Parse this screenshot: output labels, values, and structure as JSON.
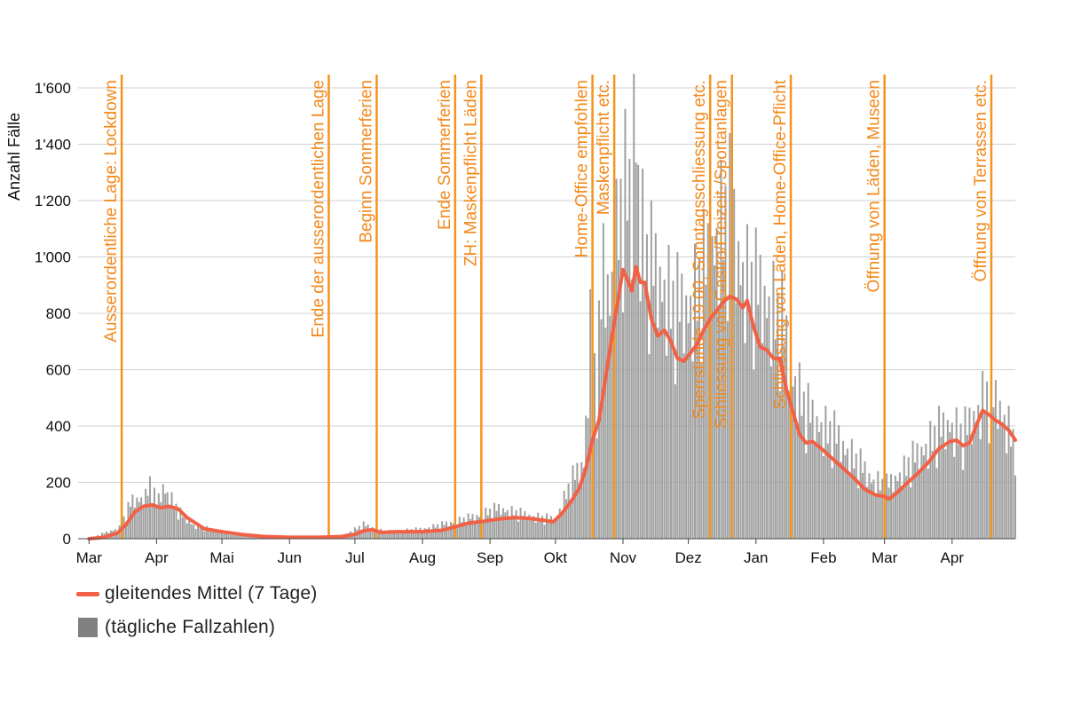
{
  "colors": {
    "line": "#f26045",
    "bars": "#a0a0a0",
    "event": "#f5931e",
    "event_text": "#f28a1c",
    "grid": "#d0d0d0",
    "legend_box": "#808080"
  },
  "chart_data": {
    "type": "bar",
    "title": "",
    "ylabel": "Anzahl Fälle",
    "ylim": [
      0,
      1600
    ],
    "yticks": [
      0,
      200,
      400,
      600,
      800,
      1000,
      1200,
      1400,
      1600
    ],
    "ytick_labels": [
      "0",
      "200",
      "400",
      "600",
      "800",
      "1'000",
      "1'200",
      "1'400",
      "1'600"
    ],
    "xticks": [
      {
        "date": "2020-03-01",
        "label": "Mar"
      },
      {
        "date": "2020-04-01",
        "label": "Apr"
      },
      {
        "date": "2020-05-01",
        "label": "Mai"
      },
      {
        "date": "2020-06-01",
        "label": "Jun"
      },
      {
        "date": "2020-07-01",
        "label": "Jul"
      },
      {
        "date": "2020-08-01",
        "label": "Aug"
      },
      {
        "date": "2020-09-01",
        "label": "Sep"
      },
      {
        "date": "2020-10-01",
        "label": "Okt"
      },
      {
        "date": "2020-11-01",
        "label": "Nov"
      },
      {
        "date": "2020-12-01",
        "label": "Dez"
      },
      {
        "date": "2021-01-01",
        "label": "Jan"
      },
      {
        "date": "2021-02-01",
        "label": "Feb"
      },
      {
        "date": "2021-03-01",
        "label": "Mar"
      },
      {
        "date": "2021-04-01",
        "label": "Apr"
      }
    ],
    "x_range": [
      "2020-02-25",
      "2021-04-30"
    ],
    "grid": true,
    "series": [
      {
        "name": "gleitendes Mittel (7 Tage)",
        "kind": "line",
        "points": [
          [
            "2020-03-01",
            0
          ],
          [
            "2020-03-08",
            5
          ],
          [
            "2020-03-14",
            20
          ],
          [
            "2020-03-18",
            50
          ],
          [
            "2020-03-22",
            95
          ],
          [
            "2020-03-26",
            115
          ],
          [
            "2020-03-30",
            120
          ],
          [
            "2020-04-03",
            110
          ],
          [
            "2020-04-07",
            115
          ],
          [
            "2020-04-11",
            105
          ],
          [
            "2020-04-15",
            75
          ],
          [
            "2020-04-19",
            55
          ],
          [
            "2020-04-23",
            35
          ],
          [
            "2020-05-01",
            25
          ],
          [
            "2020-05-10",
            15
          ],
          [
            "2020-05-20",
            8
          ],
          [
            "2020-06-01",
            5
          ],
          [
            "2020-06-15",
            5
          ],
          [
            "2020-06-25",
            8
          ],
          [
            "2020-07-01",
            15
          ],
          [
            "2020-07-05",
            28
          ],
          [
            "2020-07-09",
            32
          ],
          [
            "2020-07-13",
            22
          ],
          [
            "2020-07-20",
            25
          ],
          [
            "2020-08-01",
            25
          ],
          [
            "2020-08-10",
            30
          ],
          [
            "2020-08-15",
            40
          ],
          [
            "2020-08-22",
            55
          ],
          [
            "2020-08-29",
            62
          ],
          [
            "2020-09-05",
            70
          ],
          [
            "2020-09-12",
            75
          ],
          [
            "2020-09-19",
            72
          ],
          [
            "2020-09-26",
            65
          ],
          [
            "2020-09-30",
            60
          ],
          [
            "2020-10-04",
            90
          ],
          [
            "2020-10-08",
            130
          ],
          [
            "2020-10-12",
            180
          ],
          [
            "2020-10-15",
            250
          ],
          [
            "2020-10-18",
            350
          ],
          [
            "2020-10-21",
            420
          ],
          [
            "2020-10-24",
            570
          ],
          [
            "2020-10-27",
            720
          ],
          [
            "2020-10-30",
            860
          ],
          [
            "2020-11-01",
            955
          ],
          [
            "2020-11-03",
            920
          ],
          [
            "2020-11-05",
            880
          ],
          [
            "2020-11-07",
            965
          ],
          [
            "2020-11-09",
            910
          ],
          [
            "2020-11-11",
            910
          ],
          [
            "2020-11-14",
            780
          ],
          [
            "2020-11-17",
            720
          ],
          [
            "2020-11-20",
            740
          ],
          [
            "2020-11-23",
            700
          ],
          [
            "2020-11-26",
            640
          ],
          [
            "2020-11-29",
            630
          ],
          [
            "2020-12-02",
            660
          ],
          [
            "2020-12-05",
            690
          ],
          [
            "2020-12-08",
            740
          ],
          [
            "2020-12-11",
            780
          ],
          [
            "2020-12-14",
            810
          ],
          [
            "2020-12-17",
            840
          ],
          [
            "2020-12-20",
            860
          ],
          [
            "2020-12-23",
            850
          ],
          [
            "2020-12-26",
            820
          ],
          [
            "2020-12-28",
            845
          ],
          [
            "2020-12-31",
            750
          ],
          [
            "2021-01-03",
            680
          ],
          [
            "2021-01-06",
            670
          ],
          [
            "2021-01-09",
            640
          ],
          [
            "2021-01-12",
            640
          ],
          [
            "2021-01-15",
            530
          ],
          [
            "2021-01-18",
            450
          ],
          [
            "2021-01-21",
            370
          ],
          [
            "2021-01-24",
            340
          ],
          [
            "2021-01-27",
            345
          ],
          [
            "2021-01-31",
            320
          ],
          [
            "2021-02-05",
            285
          ],
          [
            "2021-02-10",
            250
          ],
          [
            "2021-02-15",
            215
          ],
          [
            "2021-02-20",
            175
          ],
          [
            "2021-02-25",
            155
          ],
          [
            "2021-03-01",
            150
          ],
          [
            "2021-03-03",
            140
          ],
          [
            "2021-03-07",
            165
          ],
          [
            "2021-03-11",
            195
          ],
          [
            "2021-03-16",
            230
          ],
          [
            "2021-03-21",
            270
          ],
          [
            "2021-03-26",
            320
          ],
          [
            "2021-03-31",
            345
          ],
          [
            "2021-04-03",
            350
          ],
          [
            "2021-04-06",
            330
          ],
          [
            "2021-04-09",
            340
          ],
          [
            "2021-04-12",
            400
          ],
          [
            "2021-04-15",
            455
          ],
          [
            "2021-04-18",
            440
          ],
          [
            "2021-04-21",
            420
          ],
          [
            "2021-04-24",
            405
          ],
          [
            "2021-04-27",
            385
          ],
          [
            "2021-04-30",
            350
          ]
        ]
      },
      {
        "name": "(tägliche Fallzahlen)",
        "kind": "bar",
        "points": [
          [
            "2020-03-01",
            0
          ],
          [
            "2020-03-15",
            40
          ],
          [
            "2020-03-21",
            140
          ],
          [
            "2020-03-27",
            150
          ],
          [
            "2020-03-29",
            205
          ],
          [
            "2020-04-01",
            120
          ],
          [
            "2020-04-04",
            190
          ],
          [
            "2020-04-08",
            140
          ],
          [
            "2020-04-12",
            90
          ],
          [
            "2020-04-18",
            50
          ],
          [
            "2020-04-25",
            35
          ],
          [
            "2020-05-05",
            20
          ],
          [
            "2020-05-20",
            10
          ],
          [
            "2020-06-10",
            5
          ],
          [
            "2020-06-25",
            10
          ],
          [
            "2020-07-05",
            50
          ],
          [
            "2020-07-15",
            25
          ],
          [
            "2020-08-01",
            35
          ],
          [
            "2020-08-15",
            60
          ],
          [
            "2020-08-25",
            80
          ],
          [
            "2020-09-05",
            110
          ],
          [
            "2020-09-15",
            90
          ],
          [
            "2020-09-25",
            75
          ],
          [
            "2020-10-01",
            70
          ],
          [
            "2020-10-08",
            200
          ],
          [
            "2020-10-14",
            280
          ],
          [
            "2020-10-17",
            750
          ],
          [
            "2020-10-20",
            540
          ],
          [
            "2020-10-23",
            1000
          ],
          [
            "2020-10-26",
            880
          ],
          [
            "2020-10-30",
            1150
          ],
          [
            "2020-11-02",
            1250
          ],
          [
            "2020-11-05",
            1180
          ],
          [
            "2020-11-06",
            1640
          ],
          [
            "2020-11-09",
            1170
          ],
          [
            "2020-11-12",
            1000
          ],
          [
            "2020-11-17",
            960
          ],
          [
            "2020-11-20",
            920
          ],
          [
            "2020-11-25",
            830
          ],
          [
            "2020-12-01",
            850
          ],
          [
            "2020-12-05",
            900
          ],
          [
            "2020-12-10",
            1000
          ],
          [
            "2020-12-15",
            1130
          ],
          [
            "2020-12-20",
            1180
          ],
          [
            "2020-12-25",
            1000
          ],
          [
            "2020-12-30",
            910
          ],
          [
            "2021-01-03",
            900
          ],
          [
            "2021-01-08",
            850
          ],
          [
            "2021-01-13",
            780
          ],
          [
            "2021-01-18",
            600
          ],
          [
            "2021-01-24",
            460
          ],
          [
            "2021-01-30",
            420
          ],
          [
            "2021-02-08",
            360
          ],
          [
            "2021-02-16",
            280
          ],
          [
            "2021-02-24",
            210
          ],
          [
            "2021-03-02",
            190
          ],
          [
            "2021-03-10",
            250
          ],
          [
            "2021-03-18",
            320
          ],
          [
            "2021-03-25",
            380
          ],
          [
            "2021-03-31",
            420
          ],
          [
            "2021-04-06",
            370
          ],
          [
            "2021-04-12",
            460
          ],
          [
            "2021-04-16",
            520
          ],
          [
            "2021-04-22",
            500
          ],
          [
            "2021-04-30",
            340
          ]
        ]
      }
    ],
    "annotations": [
      {
        "date": "2020-03-16",
        "label": "Ausserordentliche Lage: Lockdown"
      },
      {
        "date": "2020-06-19",
        "label": "Ende der ausserordentlichen Lage"
      },
      {
        "date": "2020-07-11",
        "label": "Beginn Sommerferien"
      },
      {
        "date": "2020-08-16",
        "label": "Ende Sommerferien"
      },
      {
        "date": "2020-08-28",
        "label": "ZH: Maskenpflicht Läden"
      },
      {
        "date": "2020-10-18",
        "label": "Home-Office empfohlen"
      },
      {
        "date": "2020-10-28",
        "label": "Maskenpflicht etc."
      },
      {
        "date": "2020-12-11",
        "label": "Sperrstunde 19.00, Sonntagsschliessung etc."
      },
      {
        "date": "2020-12-21",
        "label": "Schliessung von Gastro/Freizeit-/Sportanlagen"
      },
      {
        "date": "2021-01-17",
        "label": "Schliessung von Läden, Home-Office-Pflicht"
      },
      {
        "date": "2021-03-01",
        "label": "Öffnung von Läden, Museen"
      },
      {
        "date": "2021-04-19",
        "label": "Öffnung von Terrassen etc."
      }
    ]
  },
  "legend": {
    "line_label": "gleitendes Mittel (7 Tage)",
    "bar_label": "(tägliche Fallzahlen)"
  }
}
